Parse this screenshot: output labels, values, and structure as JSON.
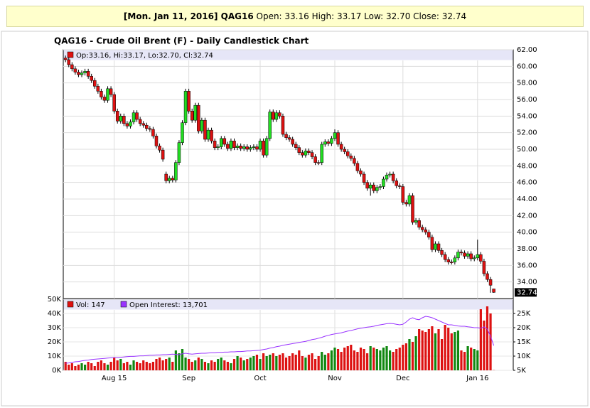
{
  "header": {
    "quote_date": "[Mon. Jan 11, 2016] QAG16",
    "quote": "Open: 33.16 High: 33.17 Low: 32.70 Close: 32.74"
  },
  "chart_data": {
    "type": "candlestick",
    "title": "QAG16 - Crude Oil Brent (F) - Daily Candlestick Chart",
    "legend": "Op:33.16, Hi:33.17, Lo:32.70, Cl:32.74",
    "up_color": "#22dd22",
    "down_color": "#dd1111",
    "xlim": [
      -0.7,
      138
    ],
    "xticks": [
      {
        "value": 15,
        "label": "Aug 15"
      },
      {
        "value": 38,
        "label": "Sep"
      },
      {
        "value": 60,
        "label": "Oct"
      },
      {
        "value": 83,
        "label": "Nov"
      },
      {
        "value": 104,
        "label": "Dec"
      },
      {
        "value": 127,
        "label": "Jan 16"
      }
    ],
    "ylim": [
      32,
      62
    ],
    "yticks": [
      {
        "value": 34,
        "label": "34.00"
      },
      {
        "value": 36,
        "label": "36.00"
      },
      {
        "value": 38,
        "label": "38.00"
      },
      {
        "value": 40,
        "label": "40.00"
      },
      {
        "value": 42,
        "label": "42.00"
      },
      {
        "value": 44,
        "label": "44.00"
      },
      {
        "value": 46,
        "label": "46.00"
      },
      {
        "value": 48,
        "label": "48.00"
      },
      {
        "value": 50,
        "label": "50.00"
      },
      {
        "value": 52,
        "label": "52.00"
      },
      {
        "value": 54,
        "label": "54.00"
      },
      {
        "value": 56,
        "label": "56.00"
      },
      {
        "value": 58,
        "label": "58.00"
      },
      {
        "value": 60,
        "label": "60.00"
      },
      {
        "value": 62,
        "label": "62.00"
      }
    ],
    "last_price": {
      "value": 32.74,
      "label": "32.74"
    },
    "ohlc": [
      [
        61.0,
        61.3,
        60.5,
        60.8
      ],
      [
        60.8,
        61.1,
        59.9,
        60.2
      ],
      [
        60.2,
        60.5,
        59.4,
        59.7
      ],
      [
        59.7,
        60.0,
        59.0,
        59.3
      ],
      [
        59.3,
        59.6,
        58.7,
        59.0
      ],
      [
        59.0,
        59.5,
        58.7,
        59.2
      ],
      [
        59.2,
        59.7,
        58.9,
        59.4
      ],
      [
        59.4,
        59.7,
        58.5,
        58.8
      ],
      [
        58.8,
        59.1,
        58.0,
        58.3
      ],
      [
        58.3,
        58.6,
        57.3,
        57.6
      ],
      [
        57.6,
        57.9,
        56.7,
        57.0
      ],
      [
        57.0,
        57.3,
        56.0,
        56.3
      ],
      [
        56.3,
        56.6,
        55.6,
        55.9
      ],
      [
        55.9,
        57.6,
        55.6,
        57.3
      ],
      [
        57.3,
        57.6,
        56.3,
        56.6
      ],
      [
        56.6,
        56.9,
        54.3,
        54.6
      ],
      [
        54.6,
        54.9,
        53.1,
        53.4
      ],
      [
        53.4,
        54.3,
        53.1,
        54.0
      ],
      [
        54.0,
        54.3,
        52.8,
        53.1
      ],
      [
        53.1,
        53.4,
        52.5,
        52.8
      ],
      [
        52.8,
        53.6,
        52.5,
        53.3
      ],
      [
        53.3,
        54.7,
        53.0,
        54.4
      ],
      [
        54.4,
        54.7,
        53.3,
        53.6
      ],
      [
        53.6,
        53.9,
        52.8,
        53.1
      ],
      [
        53.1,
        53.4,
        52.6,
        52.9
      ],
      [
        52.9,
        53.2,
        52.2,
        52.5
      ],
      [
        52.5,
        52.8,
        52.1,
        52.4
      ],
      [
        52.4,
        52.7,
        51.3,
        51.6
      ],
      [
        51.6,
        51.9,
        50.1,
        50.4
      ],
      [
        50.4,
        50.7,
        49.6,
        49.9
      ],
      [
        49.9,
        50.2,
        48.5,
        48.8
      ],
      [
        47.0,
        47.3,
        45.9,
        46.2
      ],
      [
        46.2,
        46.8,
        45.9,
        46.5
      ],
      [
        46.5,
        46.8,
        46.0,
        46.3
      ],
      [
        46.3,
        48.7,
        46.0,
        48.4
      ],
      [
        48.4,
        51.1,
        48.1,
        50.8
      ],
      [
        50.8,
        53.5,
        50.5,
        53.2
      ],
      [
        53.2,
        57.3,
        52.9,
        57.0
      ],
      [
        57.0,
        57.3,
        54.3,
        54.6
      ],
      [
        54.6,
        54.9,
        53.2,
        53.5
      ],
      [
        53.5,
        55.6,
        53.2,
        55.3
      ],
      [
        55.3,
        55.6,
        51.9,
        52.2
      ],
      [
        52.2,
        53.8,
        51.9,
        53.5
      ],
      [
        53.5,
        53.8,
        50.9,
        51.2
      ],
      [
        51.2,
        52.6,
        50.9,
        52.3
      ],
      [
        52.3,
        52.6,
        50.7,
        51.0
      ],
      [
        51.0,
        51.3,
        49.9,
        50.2
      ],
      [
        50.2,
        50.6,
        49.9,
        50.3
      ],
      [
        50.3,
        51.6,
        50.0,
        51.3
      ],
      [
        51.3,
        51.6,
        50.3,
        50.6
      ],
      [
        50.6,
        50.9,
        49.8,
        50.1
      ],
      [
        50.1,
        51.3,
        49.8,
        51.0
      ],
      [
        51.0,
        51.3,
        49.9,
        50.2
      ],
      [
        50.2,
        50.7,
        49.9,
        50.4
      ],
      [
        50.4,
        50.7,
        49.8,
        50.1
      ],
      [
        50.1,
        50.6,
        49.8,
        50.3
      ],
      [
        50.3,
        50.6,
        49.7,
        50.0
      ],
      [
        50.0,
        50.5,
        49.7,
        50.2
      ],
      [
        50.2,
        50.6,
        49.9,
        50.3
      ],
      [
        50.3,
        50.6,
        49.7,
        50.0
      ],
      [
        50.0,
        51.3,
        49.7,
        51.0
      ],
      [
        51.0,
        51.3,
        49.0,
        49.3
      ],
      [
        49.3,
        51.6,
        49.0,
        51.3
      ],
      [
        51.3,
        54.8,
        51.0,
        54.5
      ],
      [
        54.5,
        54.8,
        53.3,
        53.6
      ],
      [
        53.6,
        54.7,
        53.3,
        54.4
      ],
      [
        54.4,
        54.7,
        53.7,
        54.0
      ],
      [
        54.0,
        54.3,
        51.5,
        51.8
      ],
      [
        51.8,
        52.1,
        51.1,
        51.4
      ],
      [
        51.4,
        51.7,
        50.9,
        51.2
      ],
      [
        51.2,
        51.5,
        50.3,
        50.6
      ],
      [
        50.6,
        50.9,
        49.9,
        50.2
      ],
      [
        50.2,
        50.5,
        49.3,
        49.6
      ],
      [
        49.6,
        49.9,
        49.0,
        49.3
      ],
      [
        49.3,
        50.1,
        49.0,
        49.8
      ],
      [
        49.8,
        50.1,
        49.3,
        49.6
      ],
      [
        49.6,
        49.9,
        48.8,
        49.1
      ],
      [
        49.1,
        49.4,
        48.1,
        48.4
      ],
      [
        48.4,
        48.7,
        48.1,
        48.4
      ],
      [
        48.4,
        50.9,
        48.1,
        50.6
      ],
      [
        50.6,
        51.2,
        50.3,
        50.9
      ],
      [
        50.9,
        51.2,
        50.4,
        50.7
      ],
      [
        50.7,
        51.6,
        50.4,
        51.3
      ],
      [
        51.3,
        52.4,
        51.0,
        52.0
      ],
      [
        52.0,
        52.3,
        50.3,
        50.6
      ],
      [
        50.6,
        50.9,
        49.7,
        50.0
      ],
      [
        50.0,
        50.3,
        49.4,
        49.7
      ],
      [
        49.7,
        50.0,
        48.9,
        49.2
      ],
      [
        49.2,
        49.5,
        48.6,
        48.9
      ],
      [
        48.9,
        49.2,
        48.0,
        48.3
      ],
      [
        48.3,
        48.6,
        47.1,
        47.4
      ],
      [
        47.4,
        47.7,
        46.7,
        47.0
      ],
      [
        47.0,
        47.3,
        45.7,
        46.0
      ],
      [
        46.0,
        46.3,
        45.0,
        45.3
      ],
      [
        45.3,
        46.0,
        44.4,
        45.7
      ],
      [
        45.7,
        46.0,
        44.7,
        45.0
      ],
      [
        45.0,
        45.7,
        44.7,
        45.4
      ],
      [
        45.4,
        45.8,
        45.1,
        45.5
      ],
      [
        45.5,
        46.7,
        45.2,
        46.4
      ],
      [
        46.4,
        47.2,
        46.1,
        46.9
      ],
      [
        46.9,
        47.3,
        46.6,
        47.0
      ],
      [
        47.0,
        47.3,
        45.9,
        46.2
      ],
      [
        46.2,
        46.5,
        45.3,
        45.6
      ],
      [
        45.6,
        45.9,
        45.2,
        45.5
      ],
      [
        45.5,
        45.8,
        43.3,
        43.6
      ],
      [
        43.6,
        43.9,
        43.1,
        43.4
      ],
      [
        43.4,
        44.7,
        43.1,
        44.4
      ],
      [
        44.4,
        44.7,
        40.9,
        41.2
      ],
      [
        41.2,
        41.7,
        40.9,
        41.4
      ],
      [
        41.4,
        41.7,
        40.3,
        40.6
      ],
      [
        40.6,
        40.9,
        40.0,
        40.3
      ],
      [
        40.3,
        40.6,
        39.7,
        40.0
      ],
      [
        40.0,
        40.3,
        39.1,
        39.4
      ],
      [
        39.4,
        39.7,
        37.6,
        37.9
      ],
      [
        37.9,
        38.9,
        37.6,
        38.6
      ],
      [
        38.6,
        38.9,
        37.5,
        37.8
      ],
      [
        37.8,
        38.1,
        37.0,
        37.3
      ],
      [
        37.3,
        37.6,
        36.4,
        36.7
      ],
      [
        36.7,
        37.0,
        36.1,
        36.4
      ],
      [
        36.4,
        36.7,
        36.1,
        36.4
      ],
      [
        36.4,
        37.2,
        36.1,
        36.9
      ],
      [
        36.9,
        37.9,
        36.6,
        37.6
      ],
      [
        37.6,
        37.9,
        37.2,
        37.5
      ],
      [
        37.5,
        37.8,
        36.8,
        37.1
      ],
      [
        37.1,
        37.7,
        36.8,
        37.4
      ],
      [
        37.4,
        37.7,
        36.5,
        36.8
      ],
      [
        36.8,
        37.2,
        36.5,
        36.9
      ],
      [
        36.9,
        39.1,
        36.6,
        37.3
      ],
      [
        37.3,
        37.6,
        36.2,
        36.5
      ],
      [
        36.5,
        36.8,
        34.7,
        35.0
      ],
      [
        35.0,
        35.3,
        34.0,
        34.3
      ],
      [
        34.3,
        34.6,
        32.7,
        33.6
      ],
      [
        33.16,
        33.17,
        32.7,
        32.74
      ]
    ],
    "volume": {
      "type": "bar",
      "legend": "Vol: 147",
      "ylim": [
        0,
        50000
      ],
      "yticks": [
        {
          "value": 0,
          "label": "0K"
        },
        {
          "value": 10000,
          "label": "10K"
        },
        {
          "value": 20000,
          "label": "20K"
        },
        {
          "value": 30000,
          "label": "30K"
        },
        {
          "value": 40000,
          "label": "40K"
        },
        {
          "value": 50000,
          "label": "50K"
        }
      ],
      "values": [
        6000,
        4000,
        5000,
        3000,
        4000,
        5000,
        4000,
        6000,
        5000,
        3000,
        6000,
        7000,
        5000,
        4000,
        6000,
        9000,
        7000,
        8000,
        5000,
        6000,
        4000,
        7000,
        6000,
        5000,
        7000,
        6000,
        5000,
        6000,
        8000,
        9000,
        7000,
        8000,
        9000,
        6000,
        14000,
        12000,
        15000,
        9000,
        8000,
        6000,
        7000,
        9000,
        8000,
        6000,
        5000,
        7000,
        6000,
        8000,
        9000,
        7000,
        6000,
        5000,
        8000,
        10000,
        9000,
        7000,
        8000,
        9000,
        10000,
        11000,
        8000,
        12000,
        10000,
        11000,
        12000,
        10000,
        11000,
        12000,
        9000,
        10000,
        12000,
        11000,
        14000,
        10000,
        9000,
        11000,
        12000,
        8000,
        10000,
        13000,
        11000,
        12000,
        14000,
        16000,
        15000,
        13000,
        16000,
        17000,
        18000,
        14000,
        13000,
        16000,
        15000,
        12000,
        17000,
        16000,
        15000,
        14000,
        16000,
        17000,
        14000,
        13000,
        15000,
        16000,
        18000,
        19000,
        22000,
        20000,
        24000,
        29000,
        28000,
        27000,
        29000,
        31000,
        26000,
        29000,
        22000,
        32000,
        30000,
        26000,
        27000,
        28000,
        14000,
        13000,
        17000,
        16000,
        15000,
        14000,
        43000,
        35000,
        45000,
        40000,
        147
      ]
    },
    "open_interest": {
      "type": "line",
      "legend": "Open Interest: 13,701",
      "color": "#9933ff",
      "y2lim": [
        5000,
        30000
      ],
      "y2ticks": [
        {
          "value": 5000,
          "label": "5K"
        },
        {
          "value": 10000,
          "label": "10K"
        },
        {
          "value": 15000,
          "label": "15K"
        },
        {
          "value": 20000,
          "label": "20K"
        },
        {
          "value": 25000,
          "label": "25K"
        }
      ],
      "values": [
        7500,
        7600,
        7800,
        8000,
        8100,
        8300,
        8500,
        8600,
        8800,
        8900,
        9000,
        9100,
        9200,
        9300,
        9400,
        9500,
        9500,
        9600,
        9700,
        9800,
        9900,
        9900,
        10000,
        10100,
        10100,
        10200,
        10300,
        10300,
        10400,
        10400,
        10500,
        10500,
        10600,
        10700,
        10600,
        10500,
        10800,
        11000,
        10800,
        10700,
        10800,
        10900,
        11000,
        11000,
        11100,
        11200,
        11200,
        11300,
        11300,
        11400,
        11400,
        11500,
        11500,
        11600,
        11600,
        11700,
        11800,
        11800,
        11900,
        12000,
        12100,
        12300,
        12500,
        12800,
        13000,
        13300,
        13500,
        13800,
        14000,
        14200,
        14400,
        14600,
        14800,
        15000,
        15200,
        15500,
        15800,
        16000,
        16300,
        16600,
        17000,
        17300,
        17600,
        17800,
        18000,
        18200,
        18500,
        18800,
        19000,
        19300,
        19600,
        19800,
        20000,
        20200,
        20300,
        20500,
        20800,
        21000,
        21200,
        21400,
        21500,
        21400,
        21200,
        21000,
        21200,
        22000,
        23000,
        23500,
        23000,
        22800,
        23500,
        24000,
        23800,
        23500,
        23000,
        22500,
        22000,
        21500,
        21000,
        21000,
        20800,
        20600,
        20500,
        20500,
        20300,
        20200,
        20000,
        20000,
        19800,
        20300,
        19500,
        17000,
        13701
      ]
    }
  }
}
